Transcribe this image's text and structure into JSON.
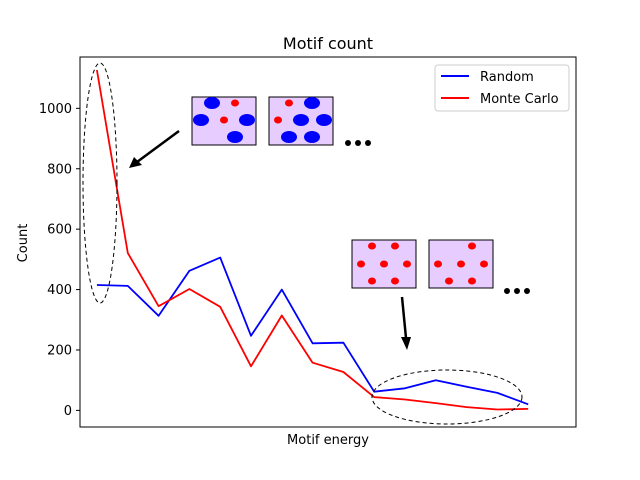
{
  "chart_data": {
    "type": "line",
    "title": "Motif count",
    "xlabel": "Motif energy",
    "ylabel": "Count",
    "ylim": [
      -55,
      1170
    ],
    "y_ticks": [
      0,
      200,
      400,
      600,
      800,
      1000
    ],
    "y_tick_labels": [
      "0",
      "200",
      "400",
      "600",
      "800",
      "1000"
    ],
    "x": [
      0,
      1,
      2,
      3,
      4,
      5,
      6,
      7,
      8,
      9,
      10,
      11,
      12,
      13,
      14
    ],
    "xlim": [
      -0.55,
      15.55
    ],
    "x_ticks_shown": false,
    "grid": false,
    "legend_position": "top-right",
    "series": [
      {
        "name": "Random",
        "color": "#0000ff",
        "values": [
          415,
          412,
          313,
          462,
          506,
          247,
          400,
          222,
          224,
          62,
          73,
          100,
          78,
          58,
          20
        ]
      },
      {
        "name": "Monte Carlo",
        "color": "#ff0000",
        "values": [
          1127,
          521,
          345,
          402,
          343,
          146,
          314,
          158,
          127,
          44,
          36,
          24,
          11,
          3,
          5
        ]
      }
    ],
    "annotations": {
      "top_motifs": {
        "panel_color": "#e6ccff",
        "dot_color_large": "#0000ff",
        "dot_color_small": "#ff0000",
        "ellipsis": "..."
      },
      "bottom_motifs": {
        "panel_color": "#e6ccff",
        "dot_color": "#ff0000",
        "ellipsis": "..."
      }
    }
  }
}
